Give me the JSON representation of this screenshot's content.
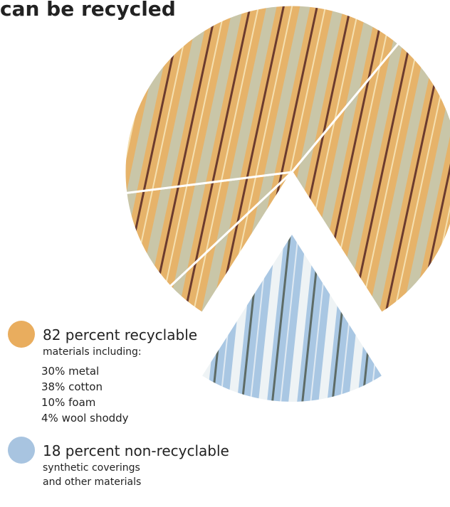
{
  "chart_data": {
    "type": "pie",
    "title": "can be recycled",
    "groups": [
      {
        "name": "82 percent recyclable",
        "value": 82,
        "color": "#e9ad5e",
        "note": [
          "materials including:"
        ],
        "items": [
          {
            "label": "30% metal",
            "value": 30
          },
          {
            "label": "38% cotton",
            "value": 38
          },
          {
            "label": "10% foam",
            "value": 10
          },
          {
            "label": "4% wool shoddy",
            "value": 4
          }
        ]
      },
      {
        "name": "18 percent non-recyclable",
        "value": 18,
        "color": "#a8c4e0",
        "note": [
          "synthetic coverings",
          "and other materials"
        ]
      }
    ]
  }
}
